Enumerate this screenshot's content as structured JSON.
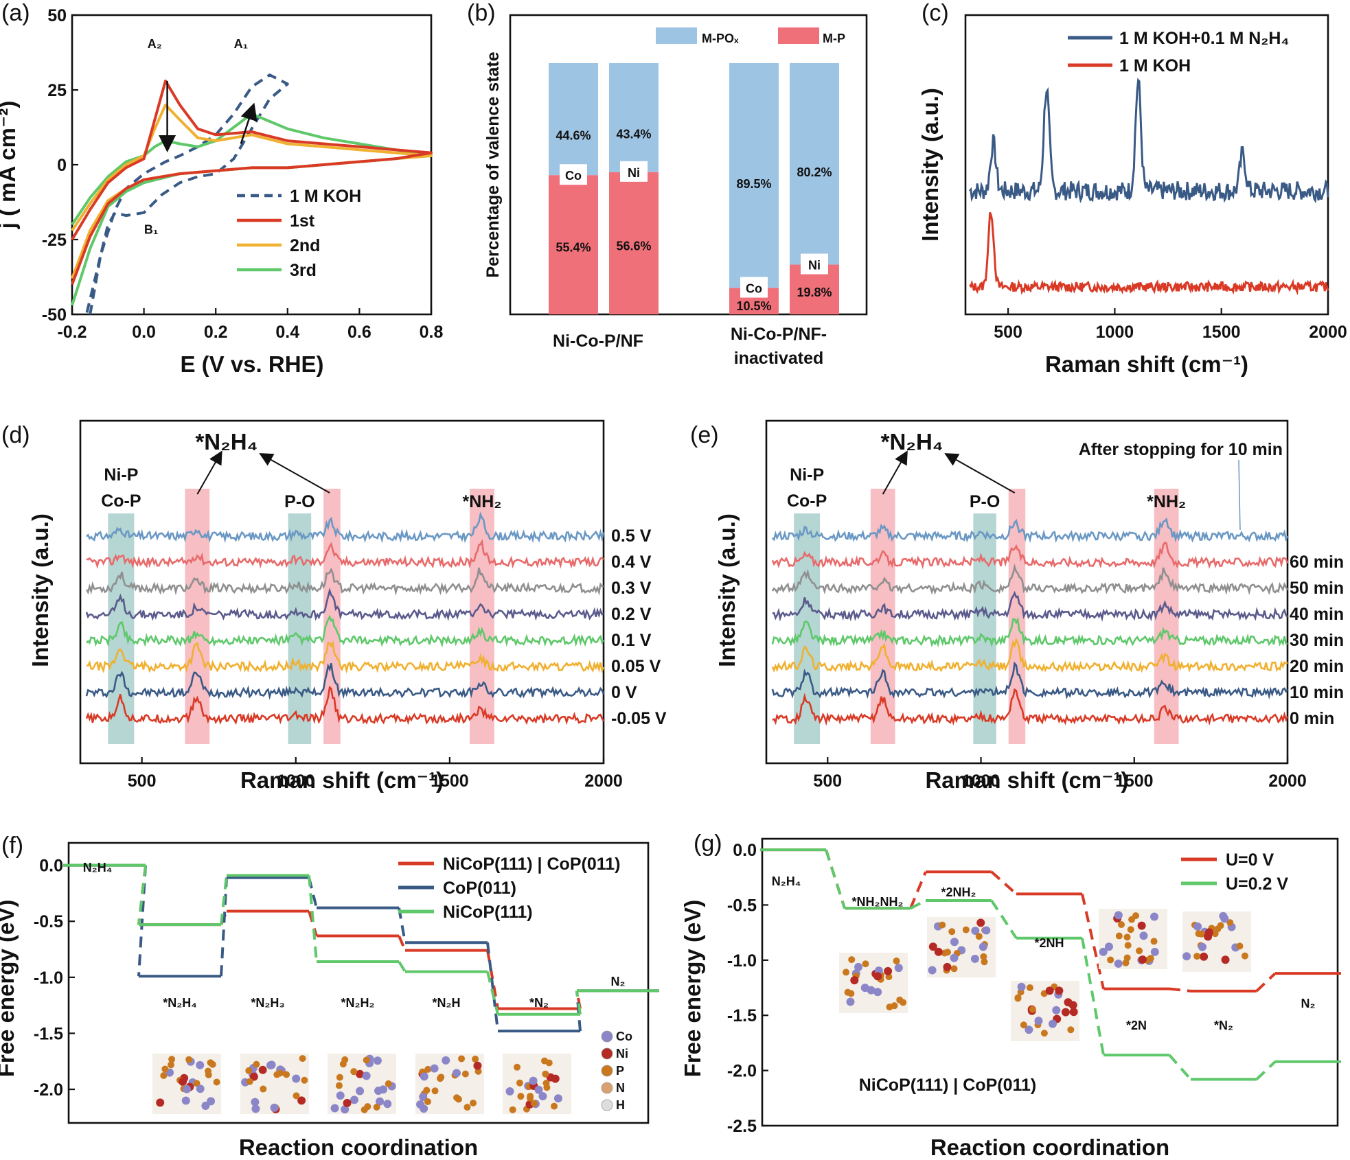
{
  "figure": {
    "panels": [
      {
        "id": "a",
        "label": "(a)"
      },
      {
        "id": "b",
        "label": "(b)"
      },
      {
        "id": "c",
        "label": "(c)"
      },
      {
        "id": "d",
        "label": "(d)"
      },
      {
        "id": "e",
        "label": "(e)"
      },
      {
        "id": "f",
        "label": "(f)"
      },
      {
        "id": "g",
        "label": "(g)"
      }
    ]
  },
  "chart_data": [
    {
      "panel": "a",
      "type": "line",
      "xlabel": "E (V vs. RHE)",
      "ylabel": "j ( mA cm⁻²)",
      "xlim": [
        -0.2,
        0.8
      ],
      "ylim": [
        -50,
        50
      ],
      "xticks": [
        -0.2,
        0.0,
        0.2,
        0.4,
        0.6,
        0.8
      ],
      "yticks": [
        -50,
        -25,
        0,
        25,
        50
      ],
      "xtick_labels": [
        "-0.2",
        "0.0",
        "0.2",
        "0.4",
        "0.6",
        "0.8"
      ],
      "ytick_labels": [
        "-50",
        "-25",
        "0",
        "25",
        "50"
      ],
      "legend": [
        "1 M KOH",
        "1st",
        "2nd",
        "3rd"
      ],
      "annotations": {
        "A2": "A₂",
        "A1": "A₁",
        "B1": "B₁"
      },
      "series": [
        {
          "name": "1 M KOH",
          "color": "#3a5a86",
          "dash": true,
          "x": [
            -0.15,
            -0.12,
            -0.08,
            -0.05,
            0.0,
            0.06,
            0.1,
            0.15,
            0.2,
            0.25,
            0.3,
            0.35,
            0.4,
            0.35,
            0.3,
            0.25,
            0.2,
            0.15,
            0.1,
            0.05,
            0.0,
            -0.05,
            -0.08,
            -0.1,
            -0.12,
            -0.14,
            -0.16
          ],
          "y": [
            -50,
            -30,
            -15,
            -8,
            -3,
            1,
            3,
            6,
            10,
            17,
            26,
            30,
            27,
            22,
            12,
            2,
            -3,
            -4,
            -6,
            -10,
            -16,
            -17,
            -16,
            -20,
            -30,
            -40,
            -50
          ]
        },
        {
          "name": "1st",
          "color": "#d93a26",
          "x": [
            -0.2,
            -0.15,
            -0.1,
            -0.05,
            0.0,
            0.03,
            0.06,
            0.1,
            0.15,
            0.2,
            0.3,
            0.4,
            0.5,
            0.6,
            0.7,
            0.8,
            0.7,
            0.6,
            0.5,
            0.4,
            0.3,
            0.2,
            0.1,
            0.0,
            -0.05,
            -0.1,
            -0.15,
            -0.2
          ],
          "y": [
            -25,
            -15,
            -6,
            -1,
            2,
            15,
            28,
            20,
            12,
            10,
            11,
            8,
            7,
            6,
            5,
            4,
            2,
            1,
            0,
            -1,
            -1,
            -2,
            -3,
            -5,
            -8,
            -13,
            -24,
            -40
          ]
        },
        {
          "name": "2nd",
          "color": "#f0b030",
          "x": [
            -0.2,
            -0.15,
            -0.1,
            -0.05,
            0.0,
            0.03,
            0.06,
            0.1,
            0.15,
            0.2,
            0.3,
            0.4,
            0.5,
            0.6,
            0.7,
            0.8,
            0.7,
            0.6,
            0.5,
            0.4,
            0.3,
            0.2,
            0.1,
            0.0,
            -0.05,
            -0.1,
            -0.15,
            -0.2
          ],
          "y": [
            -22,
            -13,
            -5,
            0,
            3,
            12,
            20,
            15,
            9,
            8,
            10,
            7,
            6,
            5,
            4,
            3,
            2,
            1,
            0,
            -1,
            -1,
            -2,
            -3,
            -5,
            -8,
            -12,
            -22,
            -38
          ]
        },
        {
          "name": "3rd",
          "color": "#5ec86a",
          "x": [
            -0.2,
            -0.15,
            -0.1,
            -0.05,
            0.0,
            0.03,
            0.06,
            0.1,
            0.15,
            0.2,
            0.3,
            0.4,
            0.5,
            0.6,
            0.7,
            0.8,
            0.7,
            0.6,
            0.5,
            0.4,
            0.3,
            0.2,
            0.1,
            0.0,
            -0.05,
            -0.1,
            -0.15,
            -0.2
          ],
          "y": [
            -20,
            -11,
            -4,
            1,
            3,
            6,
            8,
            7,
            6,
            8,
            17,
            12,
            9,
            7,
            5,
            3,
            2,
            1,
            0,
            -1,
            -1,
            -2,
            -3,
            -6,
            -9,
            -14,
            -28,
            -47
          ]
        }
      ]
    },
    {
      "panel": "b",
      "type": "bar",
      "stacked": true,
      "ylabel": "Percentage of valence state",
      "legend": [
        "M-POₓ",
        "M-P"
      ],
      "groups": [
        "Ni-Co-P/NF",
        "Ni-Co-P/NF-inactivated"
      ],
      "bars": [
        {
          "group": 0,
          "element": "Co",
          "M-P": 55.4,
          "M-POx": 44.6,
          "label_mp": "55.4%",
          "label_mpox": "44.6%"
        },
        {
          "group": 0,
          "element": "Ni",
          "M-P": 56.6,
          "M-POx": 43.4,
          "label_mp": "56.6%",
          "label_mpox": "43.4%"
        },
        {
          "group": 1,
          "element": "Co",
          "M-P": 10.5,
          "M-POx": 89.5,
          "label_mp": "10.5%",
          "label_mpox": "89.5%"
        },
        {
          "group": 1,
          "element": "Ni",
          "M-P": 19.8,
          "M-POx": 80.2,
          "label_mp": "19.8%",
          "label_mpox": "80.2%"
        }
      ],
      "colors": {
        "M-P": "#f0707a",
        "M-POx": "#9ec4e4"
      }
    },
    {
      "panel": "c",
      "type": "line",
      "xlabel": "Raman shift (cm⁻¹)",
      "ylabel": "Intensity (a.u.)",
      "xlim": [
        300,
        2000
      ],
      "xticks": [
        500,
        1000,
        1500,
        2000
      ],
      "xtick_labels": [
        "500",
        "1000",
        "1500",
        "2000"
      ],
      "legend": [
        "1 M KOH+0.1 M N₂H₄",
        "1 M KOH"
      ],
      "series": [
        {
          "name": "1 M KOH+0.1 M N₂H₄",
          "color": "#3a5a86",
          "peaks": [
            430,
            680,
            1110,
            1600
          ]
        },
        {
          "name": "1 M KOH",
          "color": "#d93a26",
          "peaks": [
            420
          ]
        }
      ]
    },
    {
      "panel": "d",
      "type": "line",
      "xlabel": "Raman shift (cm⁻¹)",
      "ylabel": "Intensity (a.u.)",
      "xlim": [
        300,
        2000
      ],
      "xticks": [
        500,
        1000,
        1500,
        2000
      ],
      "xtick_labels": [
        "500",
        "1000",
        "1500",
        "2000"
      ],
      "bands": [
        {
          "label": "Ni-P\nCo-P",
          "lines": [
            "Ni-P",
            "Co-P"
          ],
          "range": [
            390,
            475
          ],
          "color": "teal"
        },
        {
          "label": "",
          "range": [
            640,
            720
          ],
          "color": "pink"
        },
        {
          "label": "P-O",
          "lines": [
            "P-O"
          ],
          "range": [
            975,
            1050
          ],
          "color": "teal"
        },
        {
          "label": "",
          "range": [
            1090,
            1145
          ],
          "color": "pink"
        },
        {
          "label": "*NH₂",
          "lines": [
            "*NH₂"
          ],
          "range": [
            1565,
            1645
          ],
          "color": "pink"
        }
      ],
      "annotation": "*N₂H₄",
      "series": [
        {
          "name": "0.5 V",
          "color": "#6a98c4"
        },
        {
          "name": "0.4 V",
          "color": "#e86a6a"
        },
        {
          "name": "0.3 V",
          "color": "#8f8f8f"
        },
        {
          "name": "0.2 V",
          "color": "#5a5a8c"
        },
        {
          "name": "0.1 V",
          "color": "#5ec86a"
        },
        {
          "name": "0.05 V",
          "color": "#f0b030"
        },
        {
          "name": "0 V",
          "color": "#3a5a86"
        },
        {
          "name": "-0.05 V",
          "color": "#d93a26"
        }
      ]
    },
    {
      "panel": "e",
      "type": "line",
      "xlabel": "Raman shift (cm⁻¹)",
      "ylabel": "Intensity (a.u.)",
      "xlim": [
        300,
        2000
      ],
      "xticks": [
        500,
        1000,
        1500,
        2000
      ],
      "xtick_labels": [
        "500",
        "1000",
        "1500",
        "2000"
      ],
      "bands": [
        {
          "label": "Ni-P\nCo-P",
          "lines": [
            "Ni-P",
            "Co-P"
          ],
          "range": [
            390,
            475
          ],
          "color": "teal"
        },
        {
          "label": "",
          "range": [
            640,
            720
          ],
          "color": "pink"
        },
        {
          "label": "P-O",
          "lines": [
            "P-O"
          ],
          "range": [
            975,
            1050
          ],
          "color": "teal"
        },
        {
          "label": "",
          "range": [
            1090,
            1145
          ],
          "color": "pink"
        },
        {
          "label": "*NH₂",
          "lines": [
            "*NH₂"
          ],
          "range": [
            1565,
            1645
          ],
          "color": "pink"
        }
      ],
      "annotation": "*N₂H₄",
      "note": "After stopping for 10 min",
      "series": [
        {
          "name": "",
          "color": "#6a98c4"
        },
        {
          "name": "60 min",
          "color": "#e86a6a"
        },
        {
          "name": "50 min",
          "color": "#8f8f8f"
        },
        {
          "name": "40 min",
          "color": "#5a5a8c"
        },
        {
          "name": "30 min",
          "color": "#5ec86a"
        },
        {
          "name": "20 min",
          "color": "#f0b030"
        },
        {
          "name": "10 min",
          "color": "#3a5a86"
        },
        {
          "name": "0 min",
          "color": "#d93a26"
        }
      ]
    },
    {
      "panel": "f",
      "type": "line",
      "xlabel": "Reaction coordination",
      "ylabel": "Free energy (eV)",
      "ylim": [
        -2.3,
        0.2
      ],
      "yticks": [
        0.0,
        -0.5,
        -1.0,
        -1.5,
        -2.0
      ],
      "ytick_labels": [
        "0.0",
        "-0.5",
        "-1.0",
        "-1.5",
        "-2.0"
      ],
      "states": [
        "N₂H₄",
        "*N₂H₄",
        "*N₂H₃",
        "*N₂H₂",
        "*N₂H",
        "*N₂",
        "N₂"
      ],
      "legend": [
        "NiCoP(111) | CoP(011)",
        "CoP(011)",
        "NiCoP(111)"
      ],
      "atom_legend": [
        "Co",
        "Ni",
        "P",
        "N",
        "H"
      ],
      "series": [
        {
          "name": "NiCoP(111) | CoP(011)",
          "color": "#d93a26",
          "values": [
            0.0,
            -0.53,
            -0.41,
            -0.63,
            -0.76,
            -1.28,
            -1.12
          ]
        },
        {
          "name": "CoP(011)",
          "color": "#3a5a86",
          "values": [
            0.0,
            -0.99,
            -0.11,
            -0.38,
            -0.69,
            -1.48,
            -1.12
          ]
        },
        {
          "name": "NiCoP(111)",
          "color": "#5ec86a",
          "values": [
            0.0,
            -0.53,
            -0.09,
            -0.86,
            -0.95,
            -1.33,
            -1.12
          ]
        }
      ]
    },
    {
      "panel": "g",
      "type": "line",
      "xlabel": "Reaction coordination",
      "ylabel": "Free energy (eV)",
      "ylim": [
        -2.5,
        0.1
      ],
      "yticks": [
        0.0,
        -0.5,
        -1.0,
        -1.5,
        -2.0,
        -2.5
      ],
      "ytick_labels": [
        "0.0",
        "-0.5",
        "-1.0",
        "-1.5",
        "-2.0",
        "-2.5"
      ],
      "states": [
        "N₂H₄",
        "*NH₂NH₂",
        "*2NH₂",
        "*2NH",
        "*2N",
        "*N₂",
        "N₂"
      ],
      "legend": [
        "U=0 V",
        "U=0.2 V"
      ],
      "caption": "NiCoP(111) | CoP(011)",
      "series": [
        {
          "name": "U=0 V",
          "color": "#d93a26",
          "values": [
            0.0,
            -0.53,
            -0.2,
            -0.4,
            -1.26,
            -1.28,
            -1.12
          ]
        },
        {
          "name": "U=0.2 V",
          "color": "#5ec86a",
          "values": [
            0.0,
            -0.53,
            -0.46,
            -0.8,
            -1.86,
            -2.08,
            -1.92
          ]
        }
      ]
    }
  ]
}
